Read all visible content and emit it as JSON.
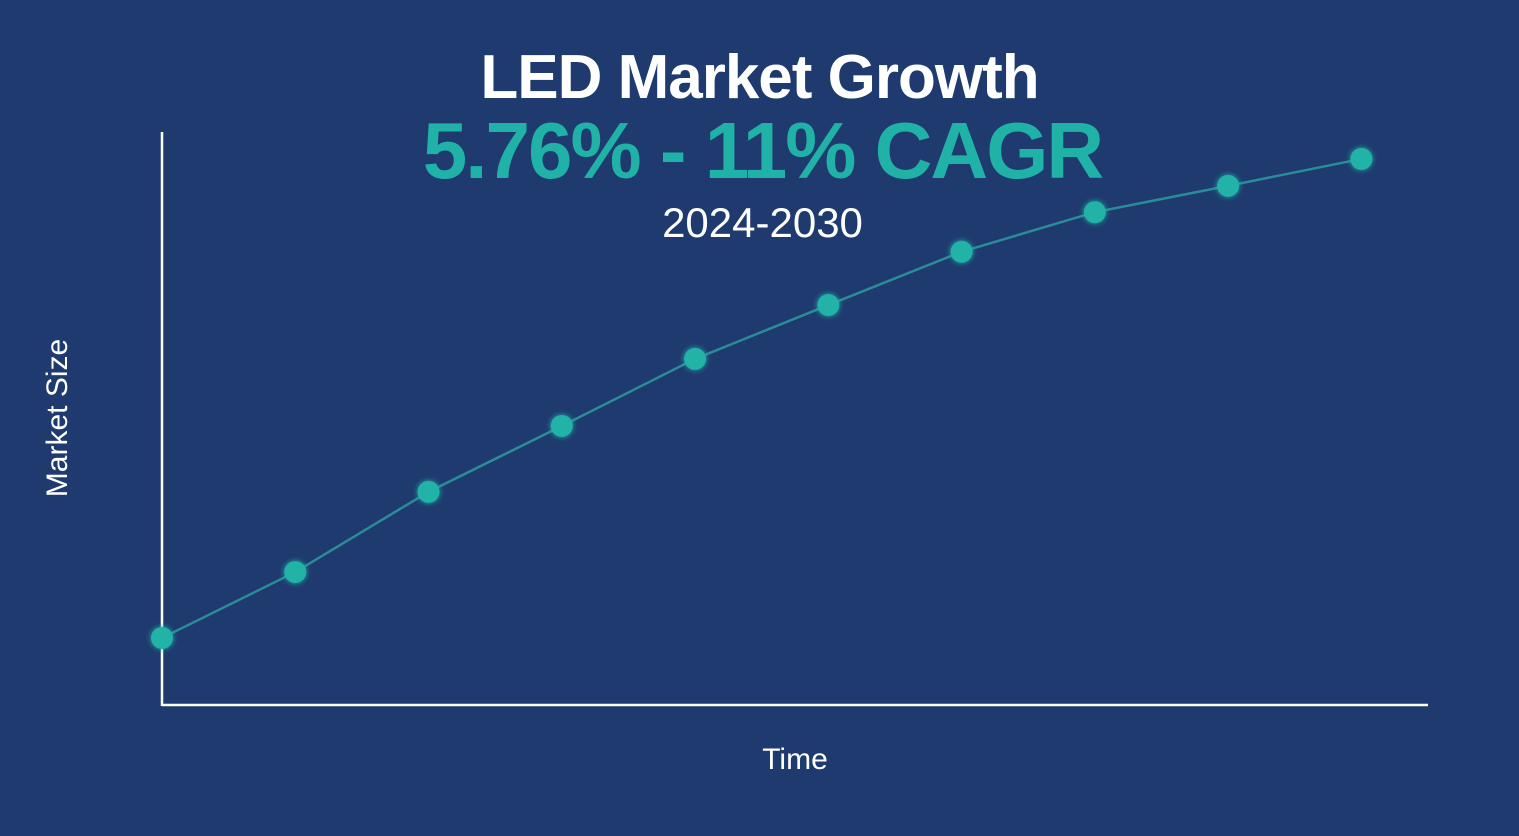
{
  "chart_data": {
    "type": "line",
    "title": "LED Market Growth",
    "subtitle": "5.76% - 11% CAGR",
    "period": "2024-2030",
    "xlabel": "Time",
    "ylabel": "Market Size",
    "x": [
      0,
      1,
      2,
      3,
      4,
      5,
      6,
      7,
      8,
      9
    ],
    "xlim": [
      0,
      9.5
    ],
    "ylim": [
      0,
      100
    ],
    "series": [
      {
        "values": [
          11.7,
          23.2,
          37.2,
          48.7,
          60.4,
          69.8,
          79.1,
          86.0,
          90.6,
          95.3
        ]
      }
    ],
    "grid": false,
    "tick_labels": false,
    "colors": {
      "background": "#1e3a6e",
      "accent": "#20b2a6",
      "line": "#2a8c98",
      "axis": "#ffffff"
    }
  }
}
